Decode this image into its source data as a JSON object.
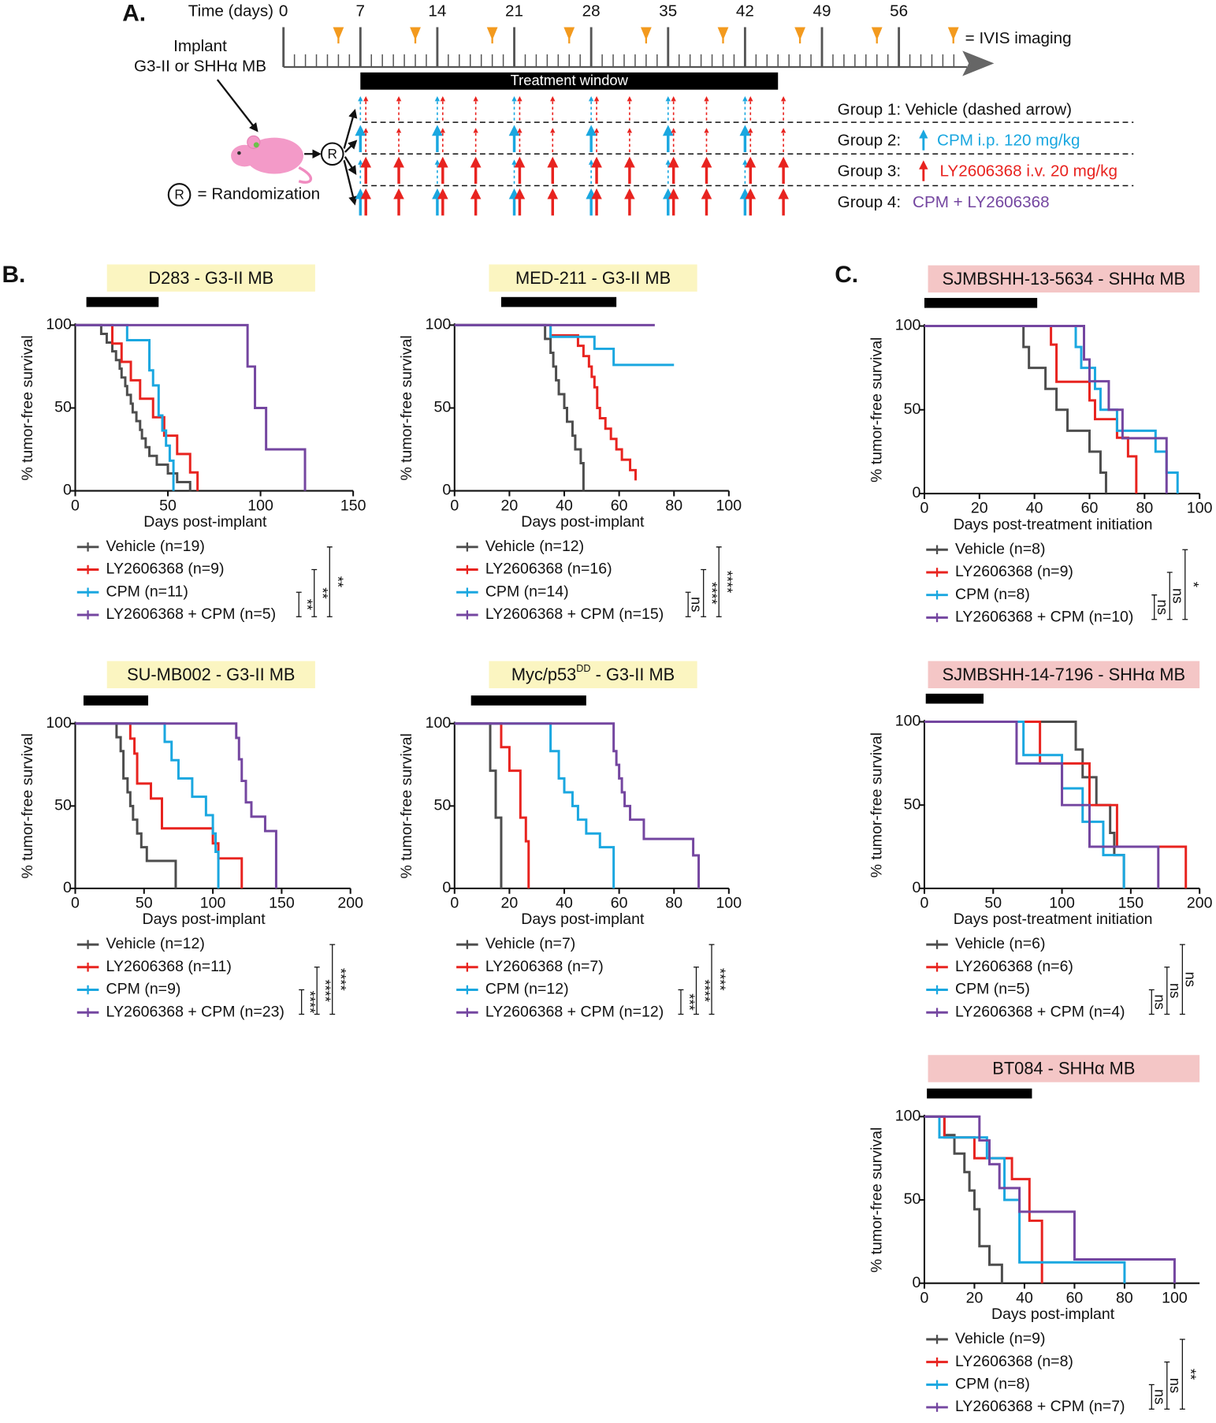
{
  "panel_labels": [
    "A.",
    "B.",
    "C."
  ],
  "panel_a": {
    "time_label": "Time (days)",
    "day_ticks": [
      0,
      7,
      14,
      21,
      28,
      35,
      42,
      49,
      56
    ],
    "imaging_days": [
      5,
      12,
      19,
      26,
      33,
      40,
      47,
      54
    ],
    "imaging_label": "= IVIS imaging",
    "treatment_window": [
      7,
      45
    ],
    "treatment_label": "Treatment window",
    "implant_label": [
      "Implant",
      "G3-II or SHHα MB"
    ],
    "randomization_symbol": "R",
    "randomization_label": "= Randomization",
    "cpm_dose_days": [
      7,
      14,
      21,
      28,
      35,
      42
    ],
    "ly_dose_days": [
      7,
      10,
      14,
      17,
      21,
      24,
      28,
      31,
      35,
      38,
      42,
      45
    ],
    "groups": [
      {
        "label": "Group 1: Vehicle (dashed arrow)"
      },
      {
        "label": "Group 2:",
        "detail": "CPM i.p. 120 mg/kg",
        "color": "#1aa7e0"
      },
      {
        "label": "Group 3:",
        "detail": "LY2606368 i.v. 20 mg/kg",
        "color": "#e8231f"
      },
      {
        "label": "Group 4:",
        "detail": "CPM + LY2606368",
        "color": "#7446a0"
      }
    ]
  },
  "chart_data": [
    {
      "type": "line",
      "step": true,
      "title": "D283 - G3-II MB",
      "title_color": "#fbf5c1",
      "treatment_window": [
        6,
        45
      ],
      "xlabel": "Days post-implant",
      "ylabel": "% tumor-free survival",
      "xlim": [
        0,
        150
      ],
      "xticks": [
        0,
        50,
        100,
        150
      ],
      "ylim": [
        0,
        100
      ],
      "yticks": [
        0,
        50,
        100
      ],
      "series": [
        {
          "name": "Vehicle (n=19)",
          "color": "#4d4d4d",
          "x": [
            0,
            14,
            17,
            20,
            22,
            24,
            25,
            27,
            28,
            30,
            31,
            33,
            35,
            36,
            38,
            40,
            44,
            50,
            55,
            62
          ],
          "values": [
            100,
            94.7,
            89.5,
            84.2,
            78.9,
            73.7,
            68.4,
            63.2,
            57.9,
            52.6,
            47.4,
            42.1,
            36.8,
            31.6,
            26.3,
            21.1,
            15.8,
            10.5,
            5.3,
            0
          ]
        },
        {
          "name": "LY2606368 (n=9)",
          "color": "#e8231f",
          "x": [
            0,
            20,
            25,
            30,
            35,
            42,
            48,
            55,
            62,
            66
          ],
          "values": [
            100,
            88.9,
            77.8,
            66.7,
            55.6,
            44.4,
            33.3,
            22.2,
            11.1,
            0
          ]
        },
        {
          "name": "CPM (n=11)",
          "color": "#1aa7e0",
          "x": [
            0,
            28,
            40,
            42,
            45,
            47,
            49,
            51,
            53
          ],
          "values": [
            100,
            90.9,
            72.7,
            63.6,
            45.5,
            36.4,
            27.3,
            18.2,
            0
          ]
        },
        {
          "name": "LY2606368 + CPM (n=5)",
          "color": "#7446a0",
          "x": [
            0,
            93,
            97,
            103,
            124
          ],
          "values": [
            100,
            75,
            50,
            25,
            0
          ]
        }
      ],
      "comparisons": [
        "**",
        "**",
        "**"
      ]
    },
    {
      "type": "line",
      "step": true,
      "title": "MED-211 - G3-II MB",
      "title_color": "#fbf5c1",
      "treatment_window": [
        17,
        59
      ],
      "xlabel": "Days post-implant",
      "ylabel": "% tumor-free survival",
      "xlim": [
        0,
        100
      ],
      "xticks": [
        0,
        20,
        40,
        60,
        80,
        100
      ],
      "ylim": [
        0,
        100
      ],
      "yticks": [
        0,
        50,
        100
      ],
      "series": [
        {
          "name": "Vehicle (n=12)",
          "color": "#4d4d4d",
          "x": [
            0,
            33,
            35,
            36,
            37,
            38,
            40,
            41,
            43,
            44,
            46,
            47
          ],
          "values": [
            100,
            91.7,
            83.3,
            75,
            66.7,
            58.3,
            50,
            41.7,
            33.3,
            25,
            16.7,
            0
          ]
        },
        {
          "name": "LY2606368 (n=16)",
          "color": "#e8231f",
          "x": [
            0,
            35,
            45,
            47,
            49,
            50,
            51,
            52,
            53,
            55,
            57,
            59,
            61,
            64,
            66
          ],
          "values": [
            100,
            93.8,
            87.5,
            81.3,
            75,
            68.8,
            62.5,
            50,
            43.8,
            37.5,
            31.3,
            25,
            18.8,
            12.5,
            6.3
          ]
        },
        {
          "name": "CPM (n=14)",
          "color": "#1aa7e0",
          "x": [
            0,
            35,
            51,
            58,
            80
          ],
          "values": [
            100,
            92.9,
            85.7,
            76,
            76
          ]
        },
        {
          "name": "LY2606368 + CPM (n=15)",
          "color": "#7446a0",
          "x": [
            0,
            73
          ],
          "values": [
            100,
            100
          ]
        }
      ],
      "comparisons": [
        "ns",
        "****",
        "****"
      ]
    },
    {
      "type": "line",
      "step": true,
      "title": "SJMBSHH-13-5634 - SHHα MB",
      "title_color": "#f4c6c6",
      "treatment_window": [
        0,
        41
      ],
      "xlabel": "Days post-treatment initiation",
      "ylabel": "% tumor-free survival",
      "xlim": [
        0,
        100
      ],
      "xticks": [
        0,
        20,
        40,
        60,
        80,
        100
      ],
      "ylim": [
        0,
        100
      ],
      "yticks": [
        0,
        50,
        100
      ],
      "series": [
        {
          "name": "Vehicle (n=8)",
          "color": "#4d4d4d",
          "x": [
            0,
            36,
            38,
            44,
            48,
            52,
            60,
            64,
            66
          ],
          "values": [
            100,
            87.5,
            75,
            62.5,
            50,
            37.5,
            25,
            12.5,
            0
          ]
        },
        {
          "name": "LY2606368 (n=9)",
          "color": "#e8231f",
          "x": [
            0,
            46,
            48,
            60,
            62,
            70,
            74,
            77
          ],
          "values": [
            100,
            88.9,
            66.7,
            55.6,
            44.4,
            33.3,
            22.2,
            0
          ]
        },
        {
          "name": "CPM (n=8)",
          "color": "#1aa7e0",
          "x": [
            0,
            55,
            57,
            62,
            64,
            70,
            84,
            88,
            92
          ],
          "values": [
            100,
            87.5,
            75,
            62.5,
            50,
            37.5,
            25,
            12.5,
            0
          ]
        },
        {
          "name": "LY2606368 + CPM (n=10)",
          "color": "#7446a0",
          "x": [
            0,
            58,
            60,
            67,
            72,
            88
          ],
          "values": [
            100,
            80,
            67,
            50,
            33,
            0
          ]
        }
      ],
      "comparisons": [
        "ns",
        "ns",
        "*"
      ]
    },
    {
      "type": "line",
      "step": true,
      "title": "SU-MB002 - G3-II MB",
      "title_color": "#fbf5c1",
      "treatment_window": [
        6,
        53
      ],
      "xlabel": "Days post-implant",
      "ylabel": "% tumor-free survival",
      "xlim": [
        0,
        200
      ],
      "xticks": [
        0,
        50,
        100,
        150,
        200
      ],
      "ylim": [
        0,
        100
      ],
      "yticks": [
        0,
        50,
        100
      ],
      "series": [
        {
          "name": "Vehicle (n=12)",
          "color": "#4d4d4d",
          "x": [
            0,
            30,
            33,
            35,
            38,
            40,
            42,
            45,
            48,
            52,
            73
          ],
          "values": [
            100,
            91.7,
            83.3,
            66.7,
            58.3,
            50,
            41.7,
            33.3,
            25,
            16.7,
            0
          ]
        },
        {
          "name": "LY2606368 (n=11)",
          "color": "#e8231f",
          "x": [
            0,
            40,
            43,
            45,
            55,
            63,
            100,
            104,
            121
          ],
          "values": [
            100,
            90.9,
            81.8,
            63.6,
            54.5,
            36.4,
            27.3,
            18.2,
            0
          ]
        },
        {
          "name": "CPM (n=9)",
          "color": "#1aa7e0",
          "x": [
            0,
            65,
            70,
            75,
            85,
            95,
            100,
            102,
            104
          ],
          "values": [
            100,
            88.9,
            77.8,
            66.7,
            55.6,
            44.4,
            33.3,
            22.2,
            0
          ]
        },
        {
          "name": "LY2606368 + CPM (n=23)",
          "color": "#7446a0",
          "x": [
            0,
            117,
            119,
            121,
            124,
            128,
            138,
            146
          ],
          "values": [
            100,
            91.3,
            78.3,
            65.2,
            52.2,
            43.5,
            34.8,
            0
          ]
        }
      ],
      "comparisons": [
        "****",
        "****",
        "****"
      ]
    },
    {
      "type": "line",
      "step": true,
      "title": "Myc/p53",
      "title_superscript": "DD",
      "title_suffix": " - G3-II MB",
      "title_color": "#fbf5c1",
      "treatment_window": [
        6,
        48
      ],
      "xlabel": "Days post-implant",
      "ylabel": "% tumor-free survival",
      "xlim": [
        0,
        100
      ],
      "xticks": [
        0,
        20,
        40,
        60,
        80,
        100
      ],
      "ylim": [
        0,
        100
      ],
      "yticks": [
        0,
        50,
        100
      ],
      "series": [
        {
          "name": "Vehicle (n=7)",
          "color": "#4d4d4d",
          "x": [
            0,
            13,
            15,
            17
          ],
          "values": [
            100,
            71.4,
            42.9,
            0
          ]
        },
        {
          "name": "LY2606368 (n=7)",
          "color": "#e8231f",
          "x": [
            0,
            17,
            20,
            24,
            26,
            27
          ],
          "values": [
            100,
            85.7,
            71.4,
            42.9,
            28.6,
            0
          ]
        },
        {
          "name": "CPM (n=12)",
          "color": "#1aa7e0",
          "x": [
            0,
            35,
            38,
            40,
            43,
            45,
            48,
            53,
            58
          ],
          "values": [
            100,
            83.3,
            66.7,
            58.3,
            50,
            41.7,
            33.3,
            25,
            0
          ]
        },
        {
          "name": "LY2606368 + CPM (n=12)",
          "color": "#7446a0",
          "x": [
            0,
            58,
            59,
            60,
            61,
            62,
            64,
            69,
            87,
            89
          ],
          "values": [
            100,
            83.3,
            75,
            66.7,
            58.3,
            50,
            41.7,
            30,
            20,
            0
          ]
        }
      ],
      "comparisons": [
        "***",
        "****",
        "****"
      ]
    },
    {
      "type": "line",
      "step": true,
      "title": "SJMBSHH-14-7196 - SHHα MB",
      "title_color": "#f4c6c6",
      "treatment_window": [
        1,
        43
      ],
      "xlabel": "Days post-treatment initiation",
      "ylabel": "% tumor-free survival",
      "xlim": [
        0,
        200
      ],
      "xticks": [
        0,
        50,
        100,
        150,
        200
      ],
      "ylim": [
        0,
        100
      ],
      "yticks": [
        0,
        50,
        100
      ],
      "series": [
        {
          "name": "Vehicle (n=6)",
          "color": "#4d4d4d",
          "x": [
            0,
            110,
            115,
            125,
            135,
            138,
            145
          ],
          "values": [
            100,
            83.3,
            66.7,
            50,
            33.3,
            20,
            0
          ]
        },
        {
          "name": "LY2606368 (n=6)",
          "color": "#e8231f",
          "x": [
            0,
            84,
            120,
            140,
            190
          ],
          "values": [
            100,
            75,
            50,
            25,
            0
          ]
        },
        {
          "name": "CPM (n=5)",
          "color": "#1aa7e0",
          "x": [
            0,
            72,
            100,
            115,
            130,
            145
          ],
          "values": [
            100,
            80,
            60,
            40,
            20,
            0
          ]
        },
        {
          "name": "LY2606368 + CPM (n=4)",
          "color": "#7446a0",
          "x": [
            0,
            67,
            100,
            120,
            170
          ],
          "values": [
            100,
            75,
            50,
            25,
            0
          ]
        }
      ],
      "comparisons": [
        "ns",
        "ns",
        "ns"
      ]
    },
    {
      "type": "line",
      "step": true,
      "title": "BT084 - SHHα MB",
      "title_color": "#f4c6c6",
      "treatment_window": [
        1,
        43
      ],
      "xlabel": "Days post-implant",
      "ylabel": "% tumor-free survival",
      "xlim": [
        0,
        110
      ],
      "xticks": [
        0,
        20,
        40,
        60,
        80,
        100
      ],
      "ylim": [
        0,
        100
      ],
      "yticks": [
        0,
        50,
        100
      ],
      "series": [
        {
          "name": "Vehicle (n=9)",
          "color": "#4d4d4d",
          "x": [
            0,
            8,
            12,
            16,
            18,
            20,
            22,
            26,
            31
          ],
          "values": [
            100,
            88.9,
            77.8,
            66.7,
            55.6,
            44.4,
            22.2,
            11.1,
            0
          ]
        },
        {
          "name": "LY2606368 (n=8)",
          "color": "#e8231f",
          "x": [
            0,
            8,
            20,
            35,
            42,
            47
          ],
          "values": [
            100,
            87.5,
            75,
            62.5,
            37.5,
            0
          ]
        },
        {
          "name": "CPM (n=8)",
          "color": "#1aa7e0",
          "x": [
            0,
            6,
            25,
            32,
            38,
            80
          ],
          "values": [
            100,
            87.5,
            75,
            50,
            12.5,
            0
          ]
        },
        {
          "name": "LY2606368 + CPM (n=7)",
          "color": "#7446a0",
          "x": [
            0,
            22,
            26,
            30,
            38,
            60,
            100
          ],
          "values": [
            100,
            85.7,
            71.4,
            57.1,
            42.9,
            14.3,
            0
          ]
        }
      ],
      "comparisons": [
        "ns",
        "ns",
        "**"
      ]
    }
  ]
}
